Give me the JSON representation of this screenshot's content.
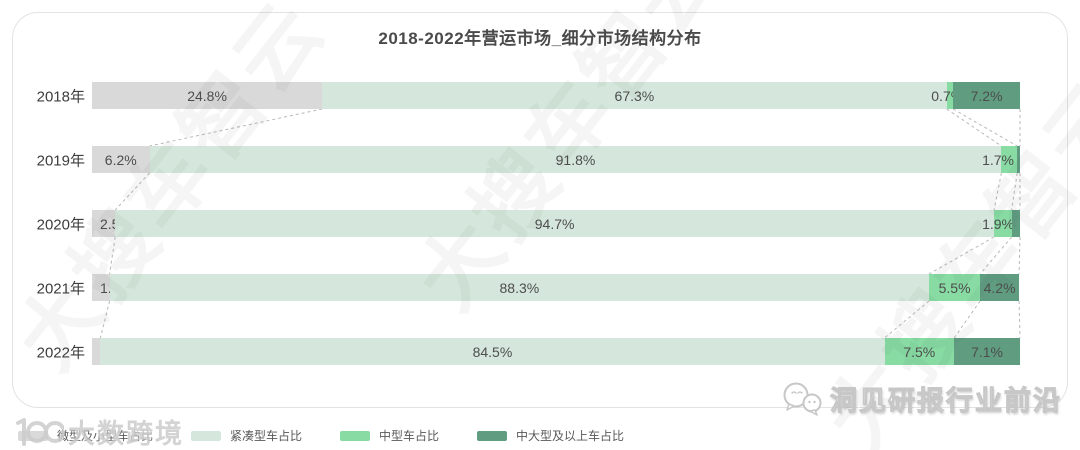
{
  "title": "2018-2022年营运市场_细分市场结构分布",
  "watermarks": {
    "diagonal_text": "大搜车智云",
    "bottom_left_logo": "大数跨境",
    "bottom_right_logo": "洞见研报行业前沿"
  },
  "colors": {
    "micro_small": "#d9d9d9",
    "compact": "#d5e7dc",
    "mid": "#87dba3",
    "mid_large": "#5f9c80",
    "connector": "#b8b8b8",
    "label_text": "#4d4d4d"
  },
  "legend": [
    {
      "label": "微型及小型车占比",
      "color": "#d9d9d9"
    },
    {
      "label": "紧凑型车占比",
      "color": "#d5e7dc"
    },
    {
      "label": "中型车占比",
      "color": "#87dba3"
    },
    {
      "label": "中大型及以上车占比",
      "color": "#5f9c80"
    }
  ],
  "chart_data": {
    "type": "bar",
    "orientation": "horizontal",
    "stacked": true,
    "title": "2018-2022年营运市场_细分市场结构分布",
    "categories": [
      "2018年",
      "2019年",
      "2020年",
      "2021年",
      "2022年"
    ],
    "series": [
      {
        "name": "微型及小型车占比",
        "color": "#d9d9d9",
        "values": [
          24.8,
          6.2,
          2.5,
          1.9,
          0.9
        ]
      },
      {
        "name": "紧凑型车占比",
        "color": "#d5e7dc",
        "values": [
          67.3,
          91.8,
          94.7,
          88.3,
          84.5
        ]
      },
      {
        "name": "中型车占比",
        "color": "#87dba3",
        "values": [
          0.7,
          1.7,
          1.9,
          5.5,
          7.5
        ]
      },
      {
        "name": "中大型及以上车占比",
        "color": "#5f9c80",
        "values": [
          7.2,
          0.3,
          0.9,
          4.2,
          7.1
        ]
      }
    ],
    "labels": [
      [
        "24.8%",
        "67.3%",
        "0.7%",
        "7.2%"
      ],
      [
        "6.2%",
        "91.8%",
        "1.7%",
        ""
      ],
      [
        "2.5%",
        "94.7%",
        "1.9%",
        ""
      ],
      [
        "1.9%",
        "88.3%",
        "5.5%",
        "4.2%"
      ],
      [
        "0.9%",
        "84.5%",
        "7.5%",
        "7.1%"
      ]
    ],
    "xlim": [
      0,
      100
    ],
    "unit": "%",
    "legend_position": "bottom",
    "grid": false,
    "connectors": "dashed lines linking segment boundaries between adjacent bars"
  }
}
